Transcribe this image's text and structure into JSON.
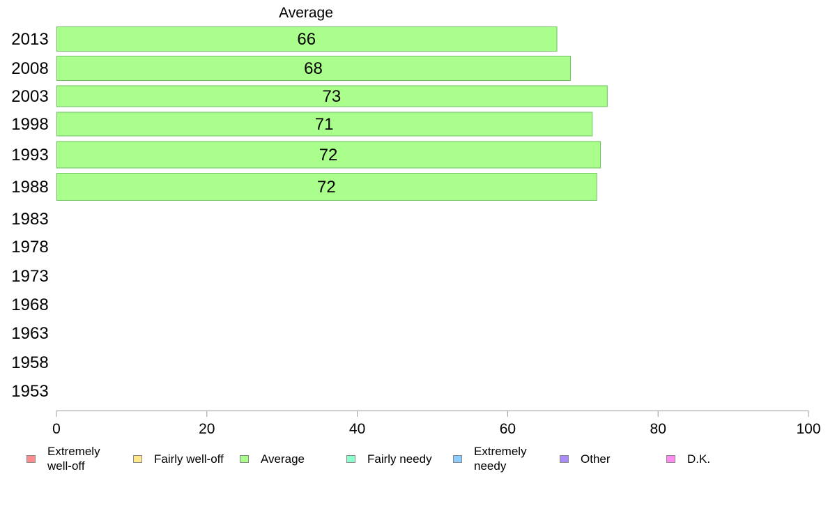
{
  "chart_data": {
    "type": "bar",
    "orientation": "horizontal",
    "series_label": "Average",
    "categories": [
      "2013",
      "2008",
      "2003",
      "1998",
      "1993",
      "1988",
      "1983",
      "1978",
      "1973",
      "1968",
      "1963",
      "1958",
      "1953"
    ],
    "series": [
      {
        "name": "Average",
        "values": [
          66.5,
          68.3,
          73.2,
          71.2,
          72.3,
          71.8,
          null,
          null,
          null,
          null,
          null,
          null,
          null
        ]
      }
    ],
    "data_labels": [
      "66",
      "68",
      "73",
      "71",
      "72",
      "72",
      "",
      "",
      "",
      "",
      "",
      "",
      ""
    ],
    "xlim": [
      0,
      100
    ],
    "xticks": [
      "0",
      "20",
      "40",
      "60",
      "80",
      "100"
    ],
    "bar_color": "#aaff8c",
    "bar_border": "#6fbf63",
    "grid": false,
    "legend_position": "bottom",
    "legend": [
      {
        "label": "Extremely\nwell-off",
        "color": "#ff8c8c"
      },
      {
        "label": "Fairly well-off",
        "color": "#ffe88c"
      },
      {
        "label": "Average",
        "color": "#aaff8c"
      },
      {
        "label": "Fairly needy",
        "color": "#8cffcc"
      },
      {
        "label": "Extremely\nneedy",
        "color": "#8cccff"
      },
      {
        "label": "Other",
        "color": "#aa8cff"
      },
      {
        "label": "D.K.",
        "color": "#ff8cee"
      }
    ]
  }
}
